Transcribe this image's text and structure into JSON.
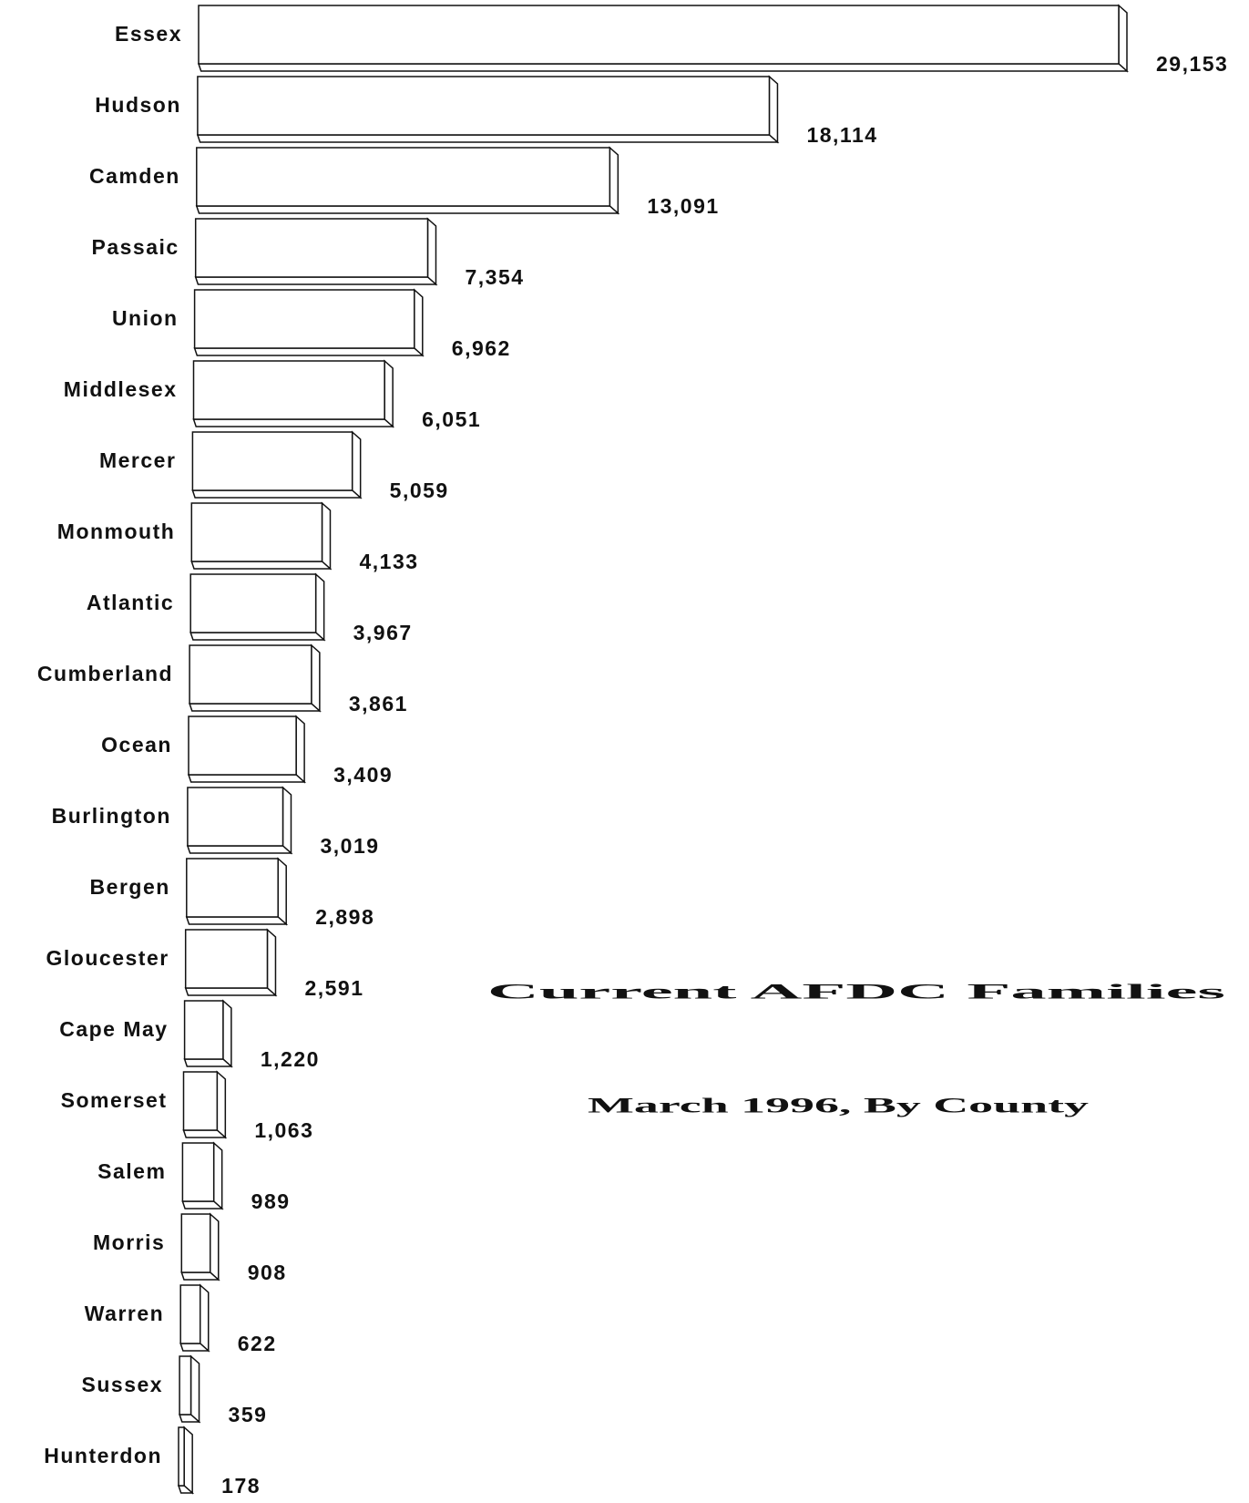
{
  "chart_data": {
    "type": "bar",
    "orientation": "horizontal",
    "title": "Current AFDC Families",
    "subtitle": "March 1996, By County",
    "categories": [
      "Essex",
      "Hudson",
      "Camden",
      "Passaic",
      "Union",
      "Middlesex",
      "Mercer",
      "Monmouth",
      "Atlantic",
      "Cumberland",
      "Ocean",
      "Burlington",
      "Bergen",
      "Gloucester",
      "Cape May",
      "Somerset",
      "Salem",
      "Morris",
      "Warren",
      "Sussex",
      "Hunterdon"
    ],
    "values": [
      29153,
      18114,
      13091,
      7354,
      6962,
      6051,
      5059,
      4133,
      3967,
      3861,
      3409,
      3019,
      2898,
      2591,
      1220,
      1063,
      989,
      908,
      622,
      359,
      178
    ],
    "value_labels": [
      "29,153",
      "18,114",
      "13,091",
      "7,354",
      "6,962",
      "6,051",
      "5,059",
      "4,133",
      "3,967",
      "3,861",
      "3,409",
      "3,019",
      "2,898",
      "2,591",
      "1,220",
      "1,063",
      "989",
      "908",
      "622",
      "359",
      "178"
    ],
    "color": "#ffffff"
  }
}
